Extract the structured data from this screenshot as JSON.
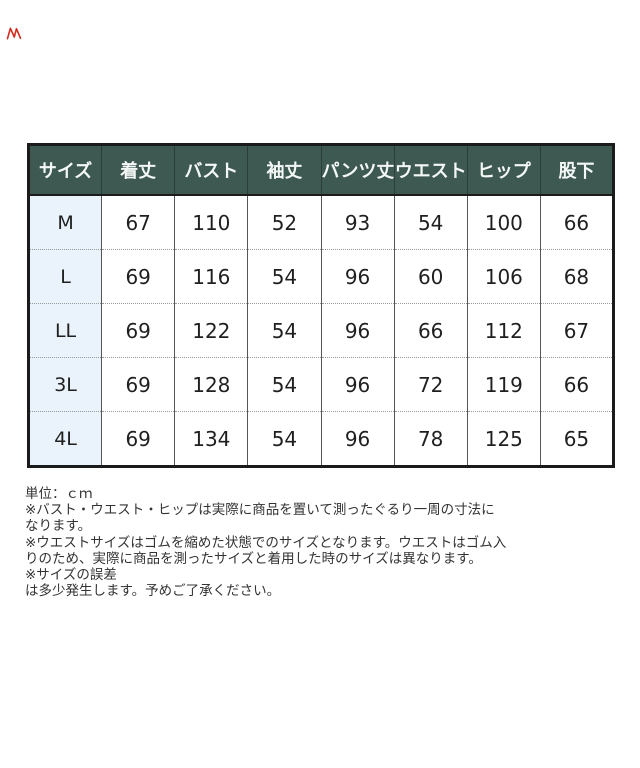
{
  "colors": {
    "header_bg": "#3e5852",
    "header_text": "#f3f7f5",
    "size_col_bg": "#eaf2fb",
    "outer_border": "#1b1b1b",
    "grid_line": "#555555",
    "dotted_line": "#999999",
    "body_text": "#333333",
    "red_mark": "#d22a1e"
  },
  "table": {
    "unit": "cm",
    "columns": [
      "サイズ",
      "着丈",
      "バスト",
      "袖丈",
      "パンツ丈",
      "ウエスト",
      "ヒップ",
      "股下"
    ],
    "rows": [
      {
        "size": "M",
        "values": [
          "67",
          "110",
          "52",
          "93",
          "54",
          "100",
          "66"
        ]
      },
      {
        "size": "L",
        "values": [
          "69",
          "116",
          "54",
          "96",
          "60",
          "106",
          "68"
        ]
      },
      {
        "size": "LL",
        "values": [
          "69",
          "122",
          "54",
          "96",
          "66",
          "112",
          "67"
        ]
      },
      {
        "size": "3L",
        "values": [
          "69",
          "128",
          "54",
          "96",
          "72",
          "119",
          "66"
        ]
      },
      {
        "size": "4L",
        "values": [
          "69",
          "134",
          "54",
          "96",
          "78",
          "125",
          "65"
        ]
      }
    ]
  },
  "notes": {
    "lines": [
      "単位：ｃｍ",
      "※バスト・ウエスト・ヒップは実際に商品を置いて測ったぐるり一周の寸法に",
      "なります。",
      "※ウエストサイズはゴムを縮めた状態でのサイズとなります。ウエストはゴム入",
      "りのため、実際に商品を測ったサイズと着用した時のサイズは異なります。",
      "※サイズの誤差",
      "は多少発生します。予めご了承ください。"
    ]
  }
}
